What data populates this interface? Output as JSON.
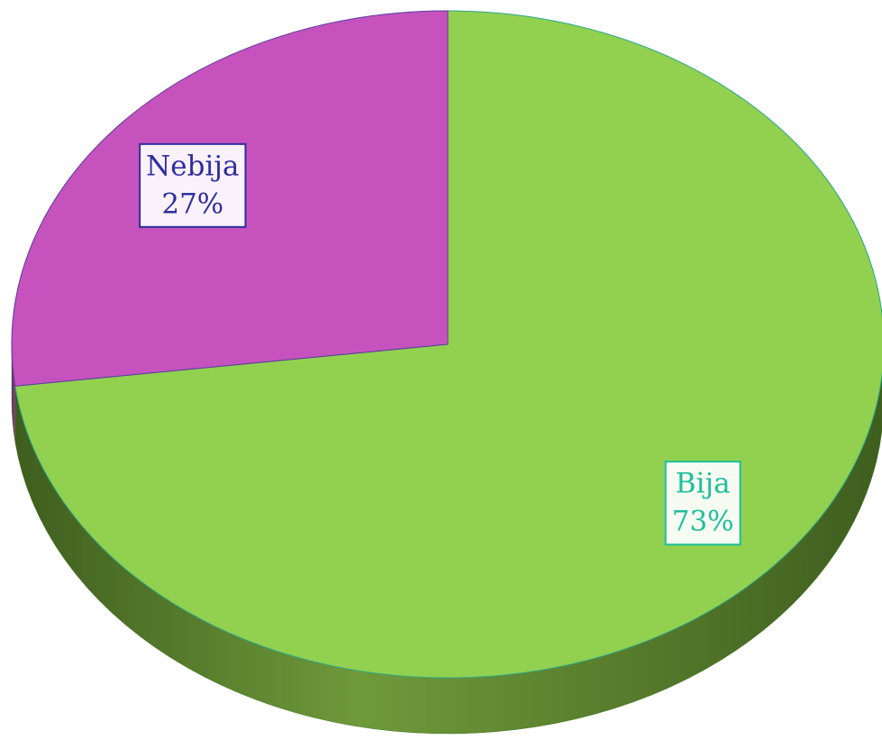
{
  "chart_data": {
    "type": "pie",
    "categories": [
      "Bija",
      "Nebija"
    ],
    "values": [
      73,
      27
    ],
    "value_labels": [
      "73%",
      "27%"
    ],
    "colors": [
      "#92d050",
      "#c653bd"
    ],
    "label_colors": [
      "#1fbf9c",
      "#2e2ea0"
    ]
  }
}
